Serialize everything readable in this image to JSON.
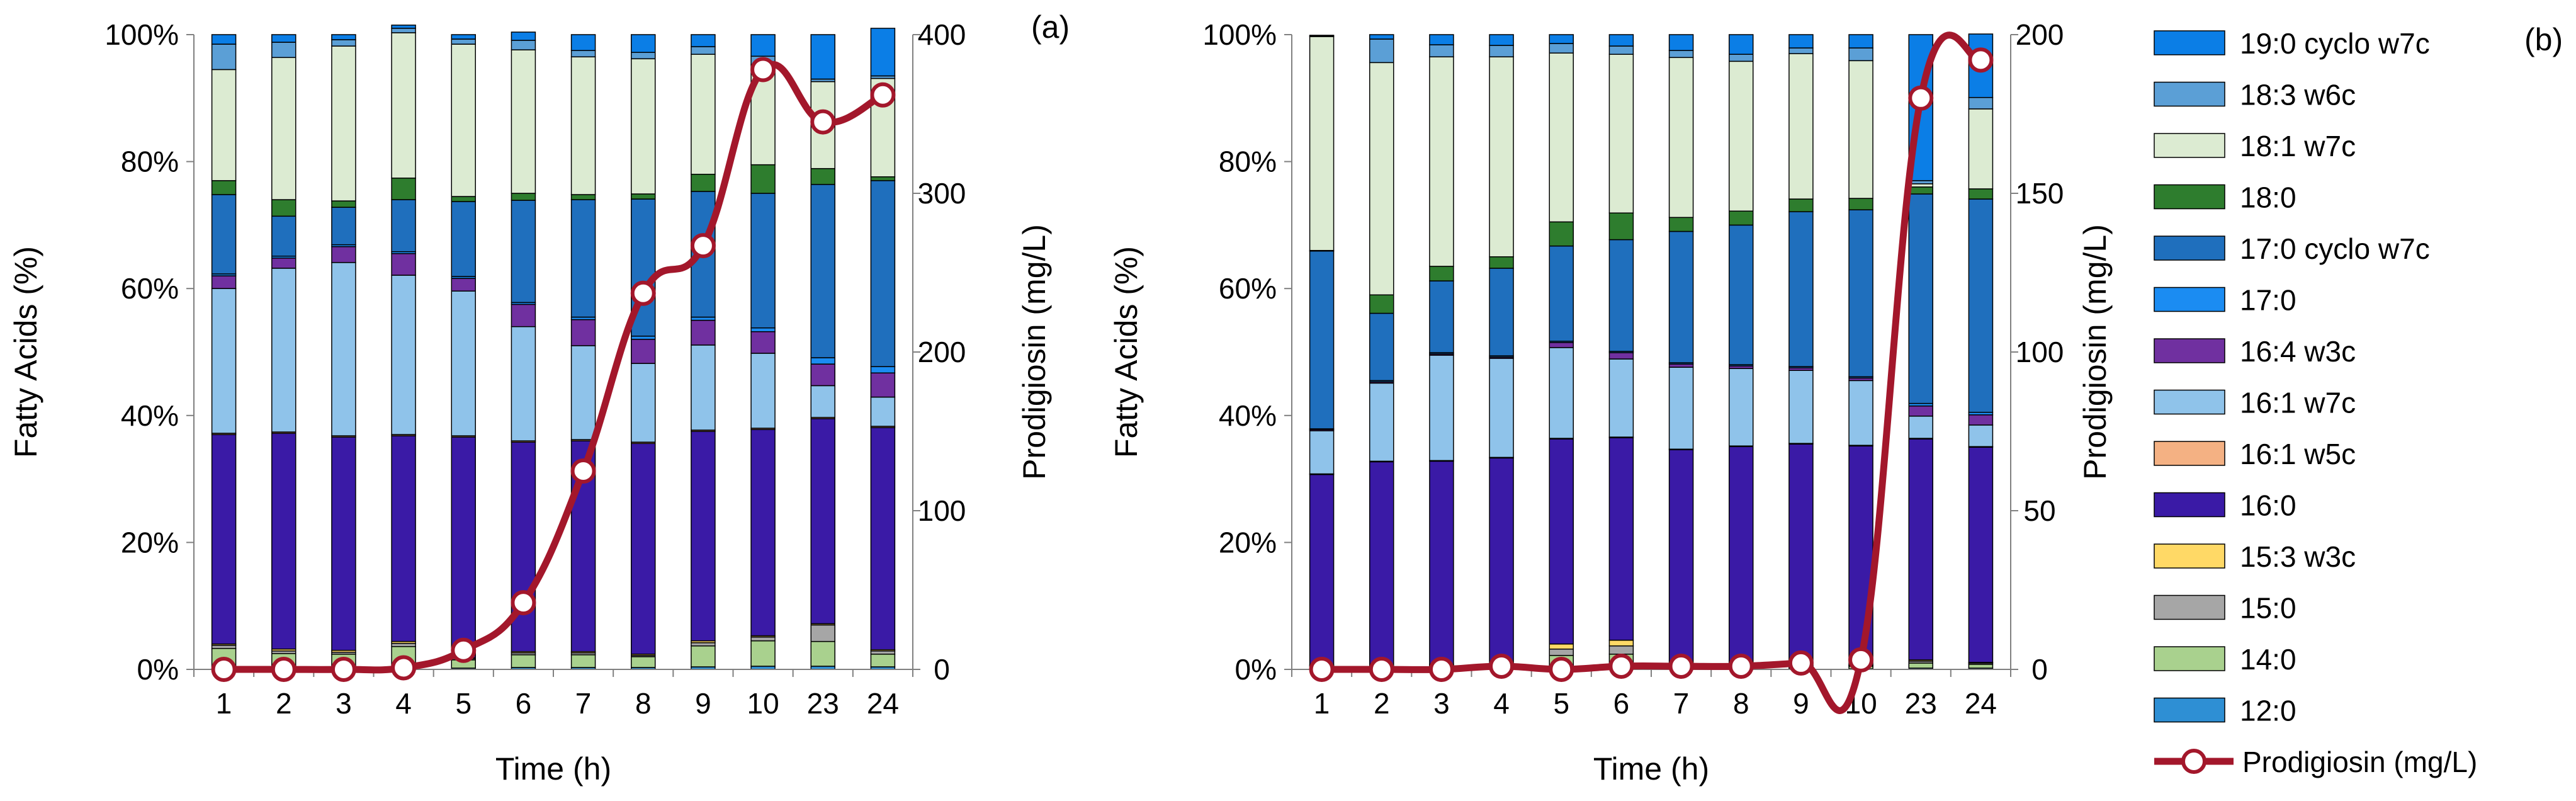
{
  "chart_data": [
    {
      "type": "bar",
      "stacked": true,
      "panel_label": "(a)",
      "title": "",
      "xlabel": "Time (h)",
      "ylabel": "Fatty Acids (%)",
      "y2label": "Prodigiosin (mg/L)",
      "categories": [
        "1",
        "2",
        "3",
        "4",
        "5",
        "6",
        "7",
        "8",
        "9",
        "10",
        "23",
        "24"
      ],
      "ylim": [
        0,
        100
      ],
      "yticks": [
        "0%",
        "20%",
        "40%",
        "60%",
        "80%",
        "100%"
      ],
      "y2lim": [
        0,
        400
      ],
      "y2ticks": [
        "0",
        "100",
        "200",
        "300",
        "400"
      ],
      "series": [
        {
          "name": "12:0",
          "values": [
            0.5,
            0.4,
            0.4,
            0.5,
            0.2,
            0.3,
            0.3,
            0.3,
            0.4,
            0.5,
            0.5,
            0.4
          ]
        },
        {
          "name": "14:0",
          "values": [
            2.8,
            2.1,
            2.0,
            3.1,
            1.3,
            2.0,
            2.0,
            1.7,
            3.3,
            4.0,
            3.9,
            2.0
          ]
        },
        {
          "name": "15:0",
          "values": [
            0.5,
            0.4,
            0.3,
            0.5,
            0.2,
            0.3,
            0.3,
            0.2,
            0.5,
            0.6,
            2.6,
            0.5
          ]
        },
        {
          "name": "15:3 w3c",
          "values": [
            0.2,
            0.3,
            0.3,
            0.3,
            0.1,
            0.2,
            0.2,
            0.2,
            0.3,
            0.2,
            0.2,
            0.2
          ]
        },
        {
          "name": "16:0",
          "values": [
            33.0,
            34.0,
            33.6,
            32.4,
            34.8,
            33.0,
            33.2,
            33.2,
            33.0,
            32.5,
            32.3,
            35.0
          ]
        },
        {
          "name": "16:1 w5c",
          "values": [
            0.2,
            0.2,
            0.2,
            0.2,
            0.2,
            0.2,
            0.2,
            0.2,
            0.2,
            0.2,
            0.2,
            0.2
          ]
        },
        {
          "name": "16:1 w7c",
          "values": [
            22.8,
            25.8,
            27.3,
            25.1,
            22.8,
            18.0,
            14.8,
            12.4,
            13.4,
            11.8,
            5.0,
            4.6
          ]
        },
        {
          "name": "16:4 w3c",
          "values": [
            2.0,
            1.6,
            2.5,
            3.4,
            2.0,
            3.5,
            4.1,
            3.8,
            3.9,
            3.4,
            3.4,
            3.8
          ]
        },
        {
          "name": "17:0",
          "values": [
            0.3,
            0.3,
            0.3,
            0.3,
            0.3,
            0.3,
            0.4,
            0.5,
            0.5,
            0.6,
            1.0,
            1.0
          ]
        },
        {
          "name": "17:0 cyclo w7c",
          "values": [
            12.5,
            6.3,
            5.9,
            8.2,
            11.8,
            16.1,
            18.5,
            21.6,
            19.8,
            21.2,
            27.3,
            29.3
          ]
        },
        {
          "name": "18:0",
          "values": [
            2.2,
            2.6,
            1.0,
            3.4,
            0.8,
            1.1,
            0.8,
            0.8,
            2.7,
            4.5,
            2.5,
            0.6
          ]
        },
        {
          "name": "18:1 w7c",
          "values": [
            17.5,
            22.4,
            24.4,
            22.9,
            24.0,
            22.6,
            21.7,
            21.3,
            18.9,
            15.8,
            13.7,
            15.5
          ]
        },
        {
          "name": "18:3 w6c",
          "values": [
            4.0,
            2.4,
            1.0,
            0.7,
            0.8,
            1.5,
            1.0,
            1.0,
            1.2,
            1.3,
            0.4,
            0.4
          ]
        },
        {
          "name": "19:0 cyclo w7c",
          "values": [
            1.5,
            1.2,
            0.8,
            0.5,
            0.7,
            1.3,
            2.5,
            2.8,
            1.9,
            3.4,
            7.0,
            7.5
          ]
        }
      ],
      "line": {
        "name": "Prodigiosin (mg/L)",
        "axis": "right",
        "values": [
          0,
          0,
          0,
          1,
          12,
          42,
          125,
          237,
          267,
          378,
          345,
          362
        ]
      }
    },
    {
      "type": "bar",
      "stacked": true,
      "panel_label": "(b)",
      "title": "",
      "xlabel": "Time (h)",
      "ylabel": "Fatty Acids (%)",
      "y2label": "Prodigiosin (mg/L)",
      "categories": [
        "1",
        "2",
        "3",
        "4",
        "5",
        "6",
        "7",
        "8",
        "9",
        "10",
        "23",
        "24"
      ],
      "ylim": [
        0,
        100
      ],
      "yticks": [
        "0%",
        "20%",
        "40%",
        "60%",
        "80%",
        "100%"
      ],
      "y2lim": [
        0,
        200
      ],
      "y2ticks": [
        "0",
        "50",
        "100",
        "150",
        "200"
      ],
      "series": [
        {
          "name": "12:0",
          "values": [
            0.1,
            0.1,
            0.1,
            0.1,
            0.2,
            0.2,
            0.1,
            0.1,
            0.1,
            0.1,
            0.2,
            0.2
          ]
        },
        {
          "name": "14:0",
          "values": [
            0.4,
            0.4,
            0.5,
            0.4,
            2.0,
            2.2,
            0.6,
            0.5,
            0.4,
            0.4,
            0.8,
            0.6
          ]
        },
        {
          "name": "15:0",
          "values": [
            0.1,
            0.1,
            0.1,
            0.1,
            1.0,
            1.3,
            0.1,
            0.1,
            0.1,
            0.1,
            0.3,
            0.2
          ]
        },
        {
          "name": "15:3 w3c",
          "values": [
            0.1,
            0.1,
            0.1,
            0.1,
            0.8,
            0.9,
            0.1,
            0.1,
            0.1,
            0.1,
            0.2,
            0.1
          ]
        },
        {
          "name": "16:0",
          "values": [
            30.0,
            32.0,
            32.0,
            32.6,
            32.3,
            31.9,
            33.7,
            34.3,
            34.8,
            34.5,
            34.8,
            33.9
          ]
        },
        {
          "name": "16:1 w5c",
          "values": [
            0.1,
            0.1,
            0.1,
            0.1,
            0.1,
            0.1,
            0.1,
            0.1,
            0.1,
            0.1,
            0.1,
            0.1
          ]
        },
        {
          "name": "16:1 w7c",
          "values": [
            6.8,
            12.3,
            16.6,
            15.6,
            14.3,
            12.3,
            12.9,
            12.2,
            11.5,
            10.2,
            3.5,
            3.4
          ]
        },
        {
          "name": "16:4 w3c",
          "values": [
            0.2,
            0.2,
            0.2,
            0.2,
            0.8,
            1.0,
            0.5,
            0.4,
            0.4,
            0.4,
            1.6,
            1.6
          ]
        },
        {
          "name": "17:0",
          "values": [
            0.1,
            0.2,
            0.2,
            0.2,
            0.2,
            0.2,
            0.2,
            0.2,
            0.2,
            0.2,
            0.4,
            0.4
          ]
        },
        {
          "name": "17:0 cyclo w7c",
          "values": [
            28.0,
            10.6,
            11.3,
            13.8,
            15.0,
            17.6,
            20.7,
            22.0,
            24.4,
            26.3,
            33.0,
            33.6
          ]
        },
        {
          "name": "18:0",
          "values": [
            0.1,
            2.9,
            2.3,
            1.8,
            3.8,
            4.2,
            2.2,
            2.2,
            2.0,
            1.8,
            1.1,
            1.6
          ]
        },
        {
          "name": "18:1 w7c",
          "values": [
            33.7,
            36.6,
            33.0,
            31.5,
            26.6,
            25.0,
            25.2,
            23.6,
            22.9,
            21.7,
            0.5,
            12.6
          ]
        },
        {
          "name": "18:3 w6c",
          "values": [
            0.1,
            3.7,
            1.9,
            1.8,
            1.5,
            1.3,
            1.1,
            1.1,
            0.9,
            2.0,
            0.5,
            1.8
          ]
        },
        {
          "name": "19:0 cyclo w7c",
          "values": [
            0.1,
            0.7,
            1.6,
            1.7,
            1.4,
            1.8,
            2.5,
            3.1,
            2.1,
            2.1,
            23.0,
            10.0
          ]
        }
      ],
      "line": {
        "name": "Prodigiosin (mg/L)",
        "axis": "right",
        "values": [
          0,
          0,
          0,
          1,
          0,
          1,
          1,
          1,
          2,
          3,
          180,
          192
        ]
      }
    }
  ],
  "legend": {
    "placement": "right",
    "items": [
      {
        "label": "19:0 cyclo w7c",
        "color": "#0b7ee6",
        "kind": "bar"
      },
      {
        "label": "18:3 w6c",
        "color": "#5b9fd6",
        "kind": "bar"
      },
      {
        "label": "18:1 w7c",
        "color": "#dcebd2",
        "kind": "bar"
      },
      {
        "label": "18:0",
        "color": "#2e7d2e",
        "kind": "bar"
      },
      {
        "label": "17:0 cyclo w7c",
        "color": "#1f6fbd",
        "kind": "bar"
      },
      {
        "label": "17:0",
        "color": "#1b8cf2",
        "kind": "bar"
      },
      {
        "label": "16:4 w3c",
        "color": "#7030a0",
        "kind": "bar"
      },
      {
        "label": "16:1 w7c",
        "color": "#8fc3ea",
        "kind": "bar"
      },
      {
        "label": "16:1 w5c",
        "color": "#f4b183",
        "kind": "bar"
      },
      {
        "label": "16:0",
        "color": "#3a1aa6",
        "kind": "bar"
      },
      {
        "label": "15:3 w3c",
        "color": "#ffd966",
        "kind": "bar"
      },
      {
        "label": "15:0",
        "color": "#a6a6a6",
        "kind": "bar"
      },
      {
        "label": "14:0",
        "color": "#a9d18e",
        "kind": "bar"
      },
      {
        "label": "12:0",
        "color": "#2e8fd4",
        "kind": "bar"
      },
      {
        "label": "Prodigiosin (mg/L)",
        "color": "#a3172b",
        "kind": "line"
      }
    ]
  }
}
